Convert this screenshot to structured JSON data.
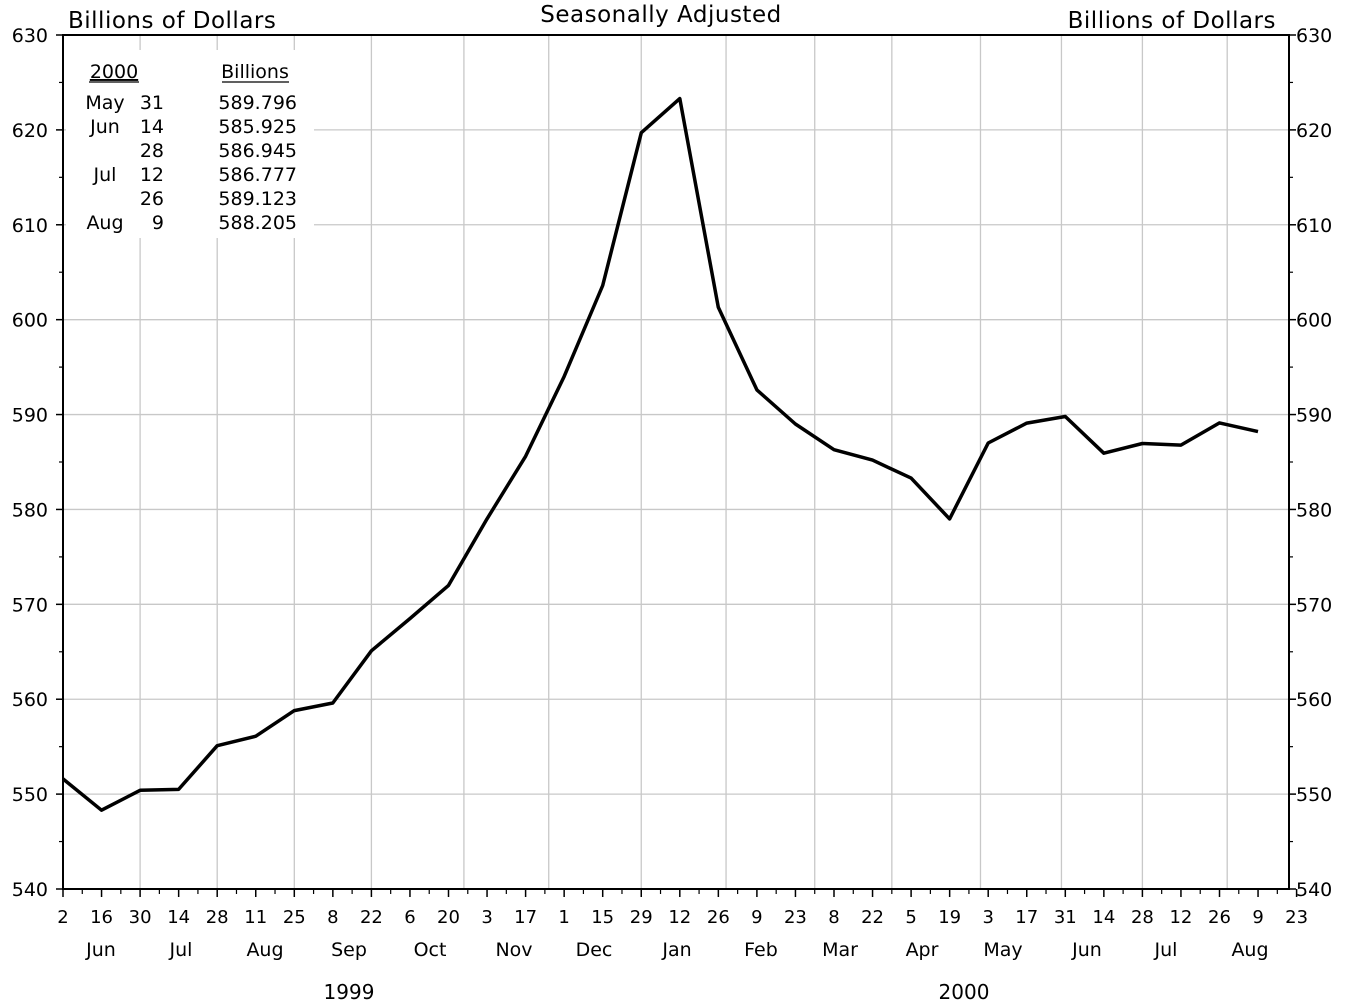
{
  "chart_data": {
    "type": "line",
    "title": "Seasonally Adjusted",
    "ylabel_left": "Billions of Dollars",
    "ylabel_right": "Billions of Dollars",
    "ylim": [
      540,
      630
    ],
    "yticks": [
      540,
      550,
      560,
      570,
      580,
      590,
      600,
      610,
      620,
      630
    ],
    "grid": true,
    "x_tick_labels": [
      "2",
      "16",
      "30",
      "14",
      "28",
      "11",
      "25",
      "8",
      "22",
      "6",
      "20",
      "3",
      "17",
      "1",
      "15",
      "29",
      "12",
      "26",
      "9",
      "23",
      "8",
      "22",
      "5",
      "19",
      "3",
      "17",
      "31",
      "14",
      "28",
      "12",
      "26",
      "9",
      "23"
    ],
    "months": [
      "Jun",
      "Jul",
      "Aug",
      "Sep",
      "Oct",
      "Nov",
      "Dec",
      "Jan",
      "Feb",
      "Mar",
      "Apr",
      "May",
      "Jun",
      "Jul",
      "Aug"
    ],
    "years": [
      "1999",
      "2000"
    ],
    "series": [
      {
        "x": [
          "1999-06-02",
          "1999-06-16",
          "1999-06-30",
          "1999-07-14",
          "1999-07-28",
          "1999-08-11",
          "1999-08-25",
          "1999-09-08",
          "1999-09-22",
          "1999-10-06",
          "1999-10-20",
          "1999-11-03",
          "1999-11-17",
          "1999-12-01",
          "1999-12-15",
          "1999-12-29",
          "2000-01-12",
          "2000-01-26",
          "2000-02-09",
          "2000-02-23",
          "2000-03-08",
          "2000-03-22",
          "2000-04-05",
          "2000-04-19",
          "2000-05-03",
          "2000-05-17",
          "2000-05-31",
          "2000-06-14",
          "2000-06-28",
          "2000-07-12",
          "2000-07-26",
          "2000-08-09"
        ],
        "values": [
          551.6,
          548.3,
          550.4,
          550.5,
          555.1,
          556.1,
          558.8,
          559.6,
          565.1,
          568.5,
          572.0,
          579.0,
          585.6,
          594.0,
          603.6,
          619.7,
          623.3,
          601.3,
          592.6,
          589.0,
          586.3,
          585.2,
          583.3,
          579.0,
          587.0,
          589.1,
          589.796,
          585.925,
          586.945,
          586.777,
          589.123,
          588.205
        ]
      }
    ],
    "inset_table": {
      "header_year": "2000",
      "header_value": "Billions",
      "rows": [
        {
          "month": "May",
          "day": "31",
          "value": "589.796"
        },
        {
          "month": "Jun",
          "day": "14",
          "value": "585.925"
        },
        {
          "month": "",
          "day": "28",
          "value": "586.945"
        },
        {
          "month": "Jul",
          "day": "12",
          "value": "586.777"
        },
        {
          "month": "",
          "day": "26",
          "value": "589.123"
        },
        {
          "month": "Aug",
          "day": "9",
          "value": "588.205"
        }
      ]
    }
  }
}
